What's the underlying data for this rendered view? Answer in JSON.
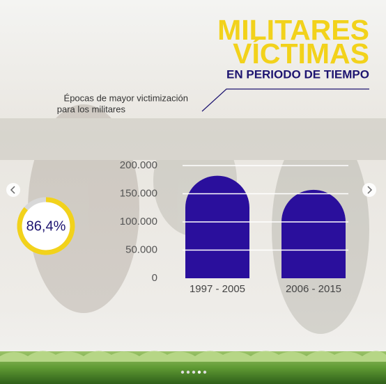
{
  "chart_data": {
    "type": "bar",
    "title": [
      "MILITARES",
      "VÍCTIMAS"
    ],
    "subtitle": "EN PERIODO DE TIEMPO",
    "annotation": [
      "Épocas de mayor victimización",
      "para los militares"
    ],
    "categories": [
      "1997 - 2005",
      "2006 - 2015"
    ],
    "values": [
      182000,
      157000
    ],
    "color": "#2a0f9c",
    "ylim": [
      0,
      200000
    ],
    "yticks": [
      0,
      {
        "value": 50000,
        "label": "50.000"
      },
      {
        "value": 100000,
        "label": "100.000"
      },
      {
        "value": 150000,
        "label": "150.000"
      },
      {
        "value": 200000,
        "label": "200.000"
      }
    ],
    "grid": true,
    "gauge": {
      "value": 86.4,
      "label": "86,4%",
      "color": "#f2d21b"
    }
  }
}
